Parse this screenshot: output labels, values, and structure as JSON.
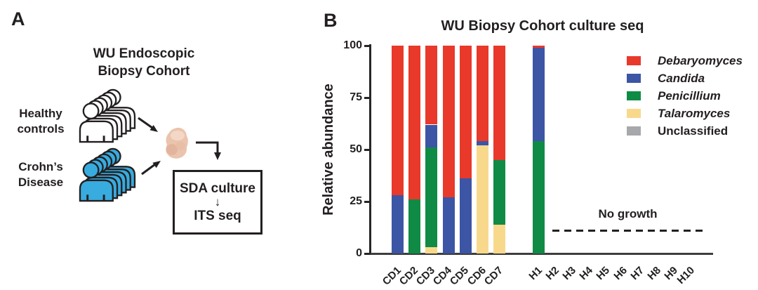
{
  "panel_a": {
    "label": "A",
    "title_line1": "WU Endoscopic",
    "title_line2": "Biopsy Cohort",
    "group_healthy_line1": "Healthy",
    "group_healthy_line2": "controls",
    "group_crohns_line1": "Crohn’s",
    "group_crohns_line2": "Disease",
    "box_step1": "SDA culture",
    "box_arrow": "↓",
    "box_step2": "ITS seq",
    "colors": {
      "healthy_fill": "#ffffff",
      "crohns_fill": "#38abdf",
      "outline": "#231f20",
      "biopsy_fill": "#ebc4ad"
    }
  },
  "panel_b": {
    "label": "B"
  },
  "chart_data": {
    "type": "stacked-bar",
    "title": "WU Biopsy Cohort culture seq",
    "ylabel": "Relative abundance",
    "ylim": [
      0,
      100
    ],
    "yticks": [
      0,
      25,
      50,
      75,
      100
    ],
    "grid": false,
    "legend_position": "upper-right",
    "categories": [
      "CD1",
      "CD2",
      "CD3",
      "CD4",
      "CD5",
      "CD6",
      "CD7",
      "H1",
      "H2",
      "H3",
      "H4",
      "H5",
      "H6",
      "H7",
      "H8",
      "H9",
      "H10"
    ],
    "stack_order": [
      "Talaromyces",
      "Penicillium",
      "Candida",
      "Debaryomyces",
      "Unclassified"
    ],
    "series": [
      {
        "name": "Debaryomyces",
        "color": "#e8392b",
        "italic": true,
        "values": [
          72,
          74,
          38,
          73,
          64,
          46,
          55,
          1,
          0,
          0,
          0,
          0,
          0,
          0,
          0,
          0,
          0
        ]
      },
      {
        "name": "Candida",
        "color": "#3c55a5",
        "italic": true,
        "values": [
          28,
          0,
          11,
          27,
          36,
          2,
          0,
          45,
          0,
          0,
          0,
          0,
          0,
          0,
          0,
          0,
          0
        ]
      },
      {
        "name": "Penicillium",
        "color": "#0f8b45",
        "italic": true,
        "values": [
          0,
          26,
          48,
          0,
          0,
          0,
          31,
          54,
          0,
          0,
          0,
          0,
          0,
          0,
          0,
          0,
          0
        ]
      },
      {
        "name": "Talaromyces",
        "color": "#f8d98c",
        "italic": true,
        "values": [
          0,
          0,
          3,
          0,
          0,
          52,
          14,
          0,
          0,
          0,
          0,
          0,
          0,
          0,
          0,
          0,
          0
        ]
      },
      {
        "name": "Unclassified",
        "color": "#a6a8ab",
        "italic": false,
        "values": [
          0,
          0,
          0,
          0,
          0,
          0,
          0,
          0,
          0,
          0,
          0,
          0,
          0,
          0,
          0,
          0,
          0
        ]
      }
    ],
    "annotation": {
      "label": "No growth",
      "from_category": "H2",
      "to_category": "H10"
    }
  }
}
